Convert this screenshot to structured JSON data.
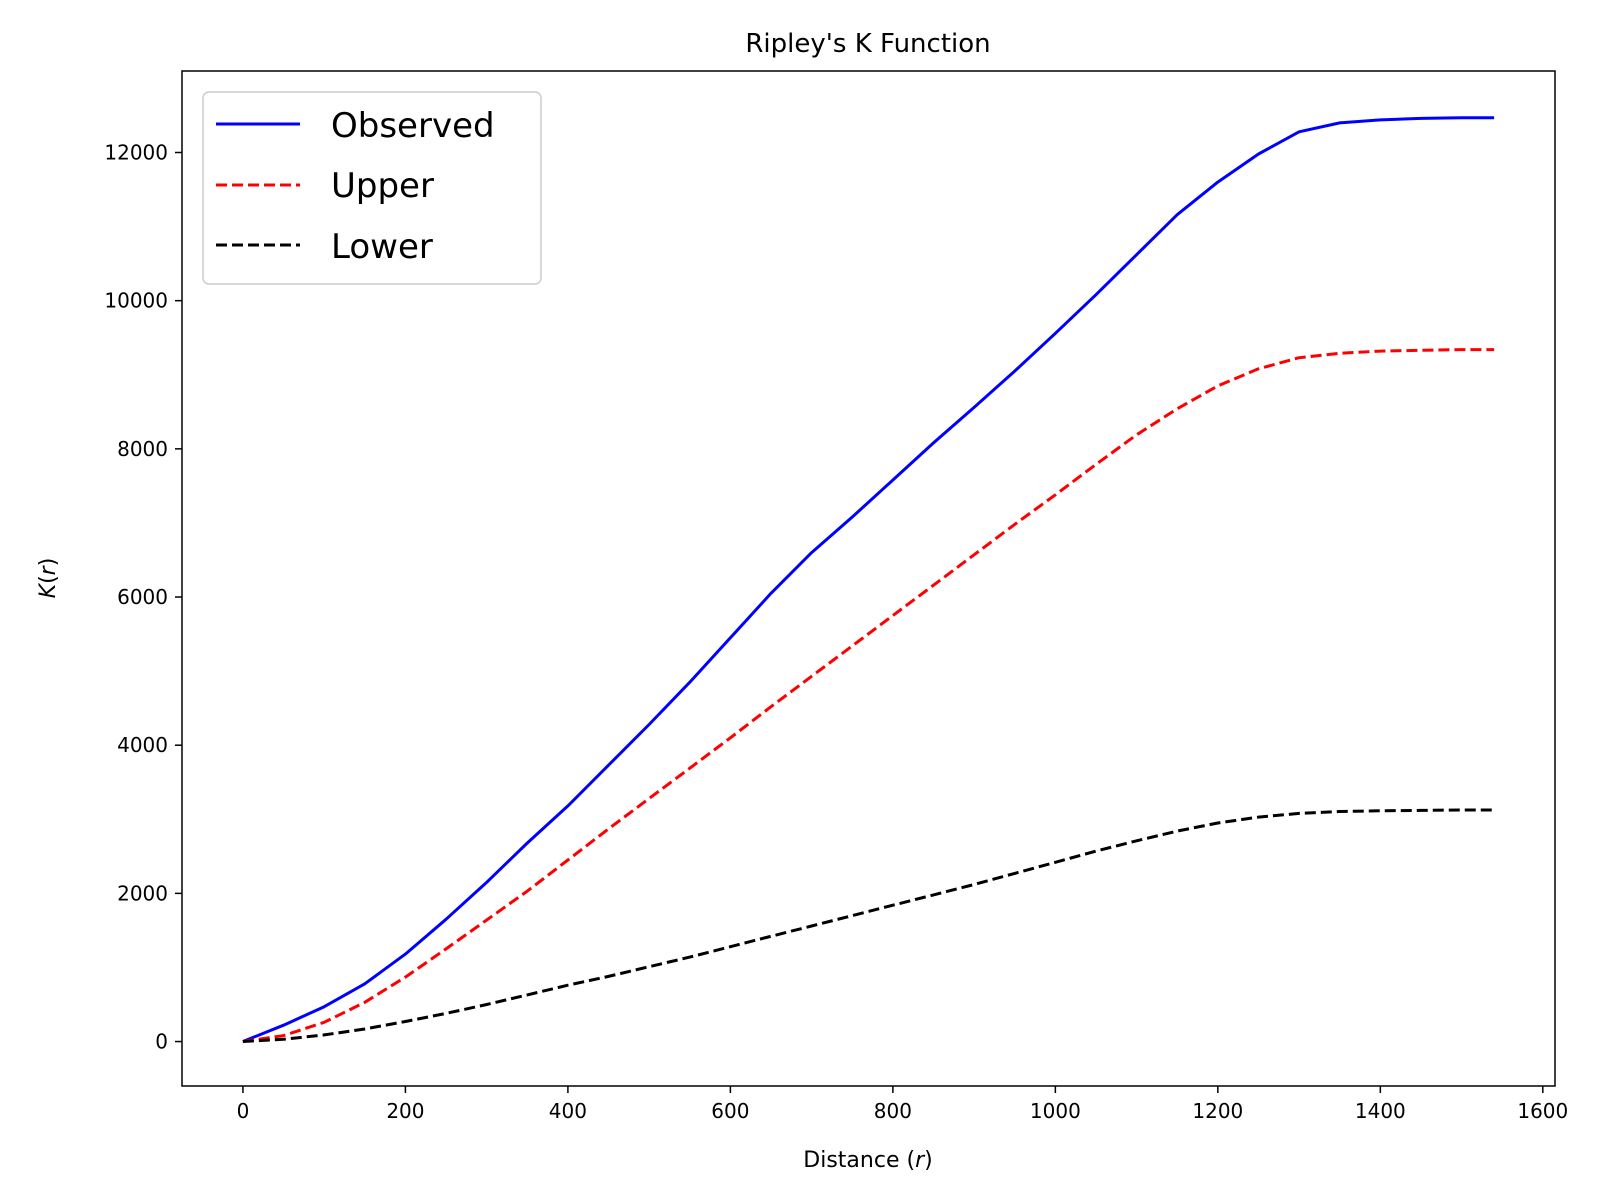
{
  "chart_data": {
    "type": "line",
    "title": "Ripley's K Function",
    "xlabel_text": "Distance (",
    "xlabel_var": "r",
    "xlabel_close": ")",
    "ylabel_var_k": "K",
    "ylabel_open": "(",
    "ylabel_var_r": "r",
    "ylabel_close": ")",
    "xlim": [
      -75,
      1615
    ],
    "ylim": [
      -600,
      13100
    ],
    "xticks": [
      0,
      200,
      400,
      600,
      800,
      1000,
      1200,
      1400,
      1600
    ],
    "yticks": [
      0,
      2000,
      4000,
      6000,
      8000,
      10000,
      12000
    ],
    "grid": false,
    "legend_position": "top-left",
    "x": [
      0,
      50,
      100,
      150,
      200,
      250,
      300,
      350,
      400,
      450,
      500,
      550,
      600,
      650,
      700,
      750,
      800,
      850,
      900,
      950,
      1000,
      1050,
      1100,
      1150,
      1200,
      1250,
      1300,
      1350,
      1400,
      1450,
      1500,
      1540
    ],
    "series": [
      {
        "name": "Observed",
        "color": "#0000ff",
        "dash": "solid",
        "values": [
          0,
          220,
          470,
          780,
          1180,
          1650,
          2150,
          2680,
          3180,
          3730,
          4280,
          4850,
          5450,
          6050,
          6600,
          7080,
          7580,
          8080,
          8560,
          9050,
          9560,
          10080,
          10620,
          11160,
          11600,
          11980,
          12280,
          12400,
          12440,
          12460,
          12470,
          12470
        ]
      },
      {
        "name": "Upper",
        "color": "#ff0000",
        "dash": "dashed",
        "values": [
          0,
          80,
          260,
          530,
          870,
          1250,
          1640,
          2030,
          2450,
          2870,
          3280,
          3690,
          4100,
          4520,
          4930,
          5340,
          5750,
          6160,
          6570,
          6980,
          7380,
          7790,
          8190,
          8540,
          8850,
          9080,
          9230,
          9290,
          9320,
          9330,
          9340,
          9340
        ]
      },
      {
        "name": "Lower",
        "color": "#000000",
        "dash": "dashed",
        "values": [
          0,
          30,
          90,
          170,
          270,
          380,
          500,
          630,
          760,
          880,
          1010,
          1140,
          1280,
          1420,
          1560,
          1700,
          1840,
          1980,
          2120,
          2270,
          2420,
          2570,
          2710,
          2840,
          2950,
          3030,
          3080,
          3105,
          3115,
          3120,
          3125,
          3125
        ]
      }
    ]
  }
}
